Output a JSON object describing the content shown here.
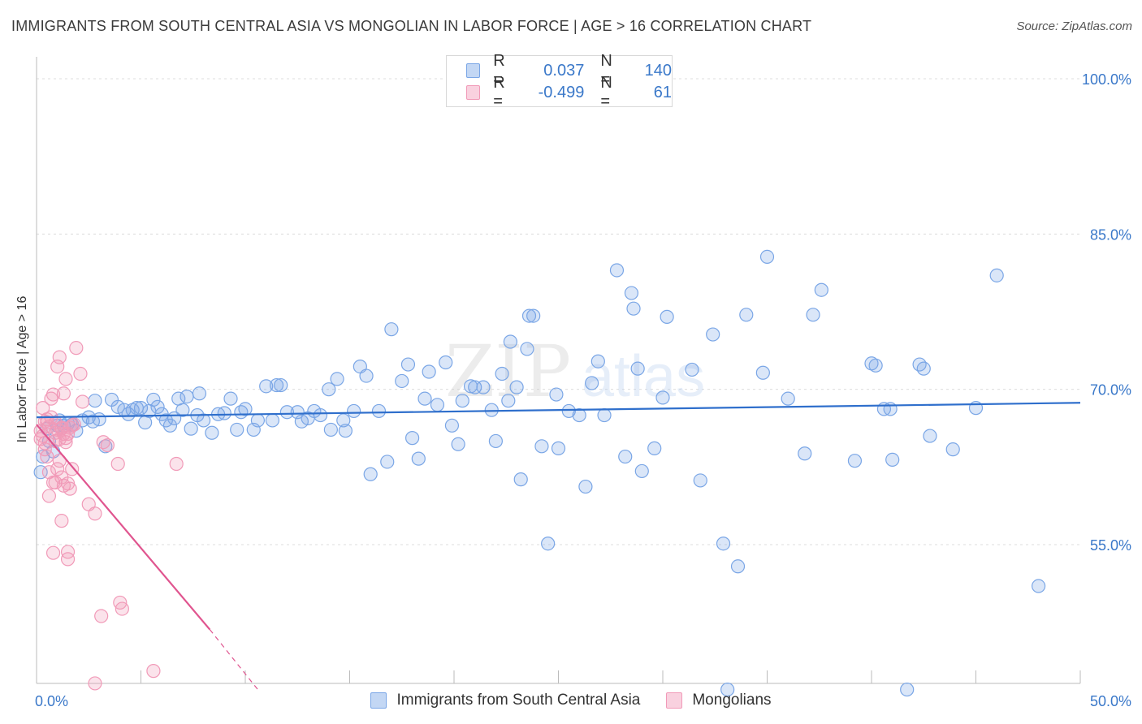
{
  "title": "IMMIGRANTS FROM SOUTH CENTRAL ASIA VS MONGOLIAN IN LABOR FORCE | AGE > 16 CORRELATION CHART",
  "source": "Source: ZipAtlas.com",
  "watermark": {
    "zip": "ZIP",
    "atlas": "atlas"
  },
  "legend": {
    "rows": [
      {
        "r_label": "R =",
        "r_value": "0.037",
        "n_label": "N =",
        "n_value": "140",
        "color": "#7aa6e6"
      },
      {
        "r_label": "R =",
        "r_value": "-0.499",
        "n_label": "N =",
        "n_value": "61",
        "color": "#f19ab8"
      }
    ]
  },
  "bottom_legend": {
    "items": [
      {
        "label": "Immigrants from South Central Asia",
        "color": "#7aa6e6"
      },
      {
        "label": "Mongolians",
        "color": "#f19ab8"
      }
    ]
  },
  "chart_data": {
    "type": "scatter",
    "ylabel": "In Labor Force | Age > 16",
    "xlim": [
      0,
      50
    ],
    "ylim": [
      40,
      102
    ],
    "x_tick_labels": [
      {
        "value": 0,
        "label": "0.0%"
      },
      {
        "value": 50,
        "label": "50.0%"
      }
    ],
    "x_minor_ticks": [
      5,
      10,
      15,
      20,
      25,
      30,
      35,
      40,
      45,
      50
    ],
    "y_ticks": [
      {
        "value": 100,
        "label": "100.0%"
      },
      {
        "value": 85,
        "label": "85.0%"
      },
      {
        "value": 70,
        "label": "70.0%"
      },
      {
        "value": 55,
        "label": "55.0%"
      }
    ],
    "grid": true,
    "legend_position": "top-center",
    "series": [
      {
        "name": "Immigrants from South Central Asia",
        "color": "#7aa6e6",
        "line_color": "#2f6fcc",
        "trend": {
          "x": [
            0,
            50
          ],
          "y": [
            67.3,
            68.7
          ]
        },
        "points": [
          [
            0.2,
            62.0
          ],
          [
            0.3,
            63.5
          ],
          [
            0.5,
            66.2
          ],
          [
            0.6,
            65.0
          ],
          [
            0.8,
            64.0
          ],
          [
            1.0,
            66.5
          ],
          [
            1.1,
            67.0
          ],
          [
            1.3,
            66.5
          ],
          [
            1.5,
            66.7
          ],
          [
            1.7,
            66.6
          ],
          [
            1.9,
            66.0
          ],
          [
            2.2,
            67.0
          ],
          [
            2.5,
            67.3
          ],
          [
            2.7,
            66.9
          ],
          [
            2.8,
            68.9
          ],
          [
            3.0,
            67.1
          ],
          [
            3.3,
            64.5
          ],
          [
            3.6,
            69.0
          ],
          [
            3.9,
            68.3
          ],
          [
            4.2,
            68.0
          ],
          [
            4.4,
            67.6
          ],
          [
            4.6,
            68.0
          ],
          [
            4.8,
            68.2
          ],
          [
            5.0,
            68.2
          ],
          [
            5.2,
            66.8
          ],
          [
            5.4,
            67.9
          ],
          [
            5.6,
            69.0
          ],
          [
            5.8,
            68.3
          ],
          [
            6.0,
            67.6
          ],
          [
            6.2,
            67.0
          ],
          [
            6.4,
            66.5
          ],
          [
            6.6,
            67.2
          ],
          [
            6.8,
            69.1
          ],
          [
            7.0,
            68.0
          ],
          [
            7.2,
            69.3
          ],
          [
            7.4,
            66.2
          ],
          [
            7.7,
            67.5
          ],
          [
            7.8,
            69.6
          ],
          [
            8.0,
            67.0
          ],
          [
            8.4,
            65.8
          ],
          [
            8.7,
            67.6
          ],
          [
            9.0,
            67.7
          ],
          [
            9.3,
            69.1
          ],
          [
            9.6,
            66.1
          ],
          [
            9.8,
            67.8
          ],
          [
            10.0,
            68.1
          ],
          [
            10.4,
            66.1
          ],
          [
            10.6,
            67.0
          ],
          [
            11.0,
            70.3
          ],
          [
            11.3,
            67.0
          ],
          [
            11.5,
            70.4
          ],
          [
            11.7,
            70.4
          ],
          [
            12.0,
            67.8
          ],
          [
            12.5,
            67.8
          ],
          [
            12.7,
            66.9
          ],
          [
            13.0,
            67.2
          ],
          [
            13.3,
            67.9
          ],
          [
            13.6,
            67.5
          ],
          [
            14.0,
            70.0
          ],
          [
            14.1,
            66.1
          ],
          [
            14.4,
            71.0
          ],
          [
            14.7,
            67.0
          ],
          [
            14.8,
            66.0
          ],
          [
            15.2,
            67.9
          ],
          [
            15.5,
            72.2
          ],
          [
            15.8,
            71.3
          ],
          [
            16.0,
            61.8
          ],
          [
            16.4,
            67.9
          ],
          [
            16.8,
            63.0
          ],
          [
            17.0,
            75.8
          ],
          [
            17.5,
            70.8
          ],
          [
            17.8,
            72.4
          ],
          [
            18.0,
            65.3
          ],
          [
            18.3,
            63.3
          ],
          [
            18.6,
            69.1
          ],
          [
            18.8,
            71.7
          ],
          [
            19.2,
            68.5
          ],
          [
            19.6,
            72.6
          ],
          [
            19.9,
            66.5
          ],
          [
            20.2,
            64.7
          ],
          [
            20.4,
            68.9
          ],
          [
            20.8,
            70.3
          ],
          [
            21.0,
            70.2
          ],
          [
            21.4,
            70.2
          ],
          [
            21.8,
            68.0
          ],
          [
            22.0,
            65.0
          ],
          [
            22.3,
            71.5
          ],
          [
            22.6,
            68.9
          ],
          [
            22.7,
            74.6
          ],
          [
            23.0,
            70.2
          ],
          [
            23.2,
            61.3
          ],
          [
            23.5,
            73.9
          ],
          [
            23.6,
            77.1
          ],
          [
            23.8,
            77.1
          ],
          [
            24.2,
            64.5
          ],
          [
            24.5,
            55.1
          ],
          [
            24.9,
            69.5
          ],
          [
            25.0,
            64.3
          ],
          [
            25.5,
            67.9
          ],
          [
            26.0,
            67.5
          ],
          [
            26.3,
            60.6
          ],
          [
            26.6,
            70.6
          ],
          [
            26.9,
            72.7
          ],
          [
            27.2,
            67.5
          ],
          [
            27.8,
            81.5
          ],
          [
            28.2,
            63.5
          ],
          [
            28.5,
            79.3
          ],
          [
            28.6,
            77.8
          ],
          [
            28.8,
            72.0
          ],
          [
            29.0,
            62.1
          ],
          [
            29.6,
            64.3
          ],
          [
            30.0,
            69.2
          ],
          [
            30.2,
            77.0
          ],
          [
            31.4,
            71.9
          ],
          [
            31.8,
            61.2
          ],
          [
            32.4,
            75.3
          ],
          [
            32.9,
            55.1
          ],
          [
            33.1,
            41.0
          ],
          [
            33.6,
            52.9
          ],
          [
            34.0,
            77.2
          ],
          [
            34.8,
            71.6
          ],
          [
            35.0,
            82.8
          ],
          [
            36.0,
            69.1
          ],
          [
            36.8,
            63.8
          ],
          [
            37.2,
            77.2
          ],
          [
            37.6,
            79.6
          ],
          [
            39.2,
            63.1
          ],
          [
            40.0,
            72.5
          ],
          [
            40.2,
            72.3
          ],
          [
            40.6,
            68.1
          ],
          [
            40.9,
            68.1
          ],
          [
            41.0,
            63.2
          ],
          [
            41.7,
            41.0
          ],
          [
            42.3,
            72.4
          ],
          [
            42.5,
            72.0
          ],
          [
            42.8,
            65.5
          ],
          [
            43.9,
            64.2
          ],
          [
            45.0,
            68.2
          ],
          [
            46.0,
            81.0
          ],
          [
            48.0,
            51.0
          ]
        ]
      },
      {
        "name": "Mongolians",
        "color": "#f19ab8",
        "line_color": "#e0558f",
        "trend": {
          "x": [
            0,
            8.3
          ],
          "y": [
            66.6,
            46.8
          ]
        },
        "trend_extension": {
          "x": [
            8.3,
            10.6
          ],
          "y": [
            46.8,
            41.0
          ]
        },
        "points": [
          [
            0.2,
            66.0
          ],
          [
            0.3,
            65.5
          ],
          [
            0.4,
            64.8
          ],
          [
            0.5,
            63.5
          ],
          [
            0.6,
            66.4
          ],
          [
            0.7,
            69.1
          ],
          [
            0.8,
            69.5
          ],
          [
            0.9,
            66.8
          ],
          [
            1.0,
            66.1
          ],
          [
            1.1,
            65.2
          ],
          [
            1.2,
            66.3
          ],
          [
            1.3,
            65.7
          ],
          [
            1.4,
            64.9
          ],
          [
            1.5,
            65.7
          ],
          [
            1.6,
            66.3
          ],
          [
            1.7,
            66.5
          ],
          [
            1.8,
            66.6
          ],
          [
            0.3,
            68.2
          ],
          [
            0.5,
            66.8
          ],
          [
            0.7,
            67.3
          ],
          [
            0.9,
            65.0
          ],
          [
            1.1,
            63.1
          ],
          [
            1.0,
            62.3
          ],
          [
            0.6,
            62.0
          ],
          [
            0.8,
            61.0
          ],
          [
            0.6,
            59.7
          ],
          [
            1.2,
            61.5
          ],
          [
            1.3,
            60.7
          ],
          [
            0.9,
            61.0
          ],
          [
            1.5,
            60.9
          ],
          [
            1.6,
            60.4
          ],
          [
            1.7,
            62.3
          ],
          [
            1.2,
            57.3
          ],
          [
            1.5,
            54.3
          ],
          [
            0.8,
            54.2
          ],
          [
            1.5,
            53.6
          ],
          [
            1.0,
            72.2
          ],
          [
            1.1,
            73.1
          ],
          [
            1.3,
            69.6
          ],
          [
            1.4,
            71.0
          ],
          [
            1.9,
            74.0
          ],
          [
            2.1,
            71.5
          ],
          [
            2.2,
            68.8
          ],
          [
            2.5,
            58.9
          ],
          [
            2.8,
            58.0
          ],
          [
            3.2,
            64.9
          ],
          [
            3.4,
            64.6
          ],
          [
            3.9,
            62.8
          ],
          [
            4.0,
            49.4
          ],
          [
            4.1,
            48.8
          ],
          [
            3.1,
            48.1
          ],
          [
            2.8,
            41.6
          ],
          [
            5.6,
            42.8
          ],
          [
            6.7,
            62.8
          ],
          [
            0.4,
            64.2
          ],
          [
            0.5,
            67.1
          ],
          [
            0.9,
            65.8
          ],
          [
            1.2,
            66.2
          ],
          [
            1.4,
            65.3
          ],
          [
            0.2,
            65.2
          ],
          [
            0.4,
            66.9
          ]
        ]
      }
    ]
  }
}
